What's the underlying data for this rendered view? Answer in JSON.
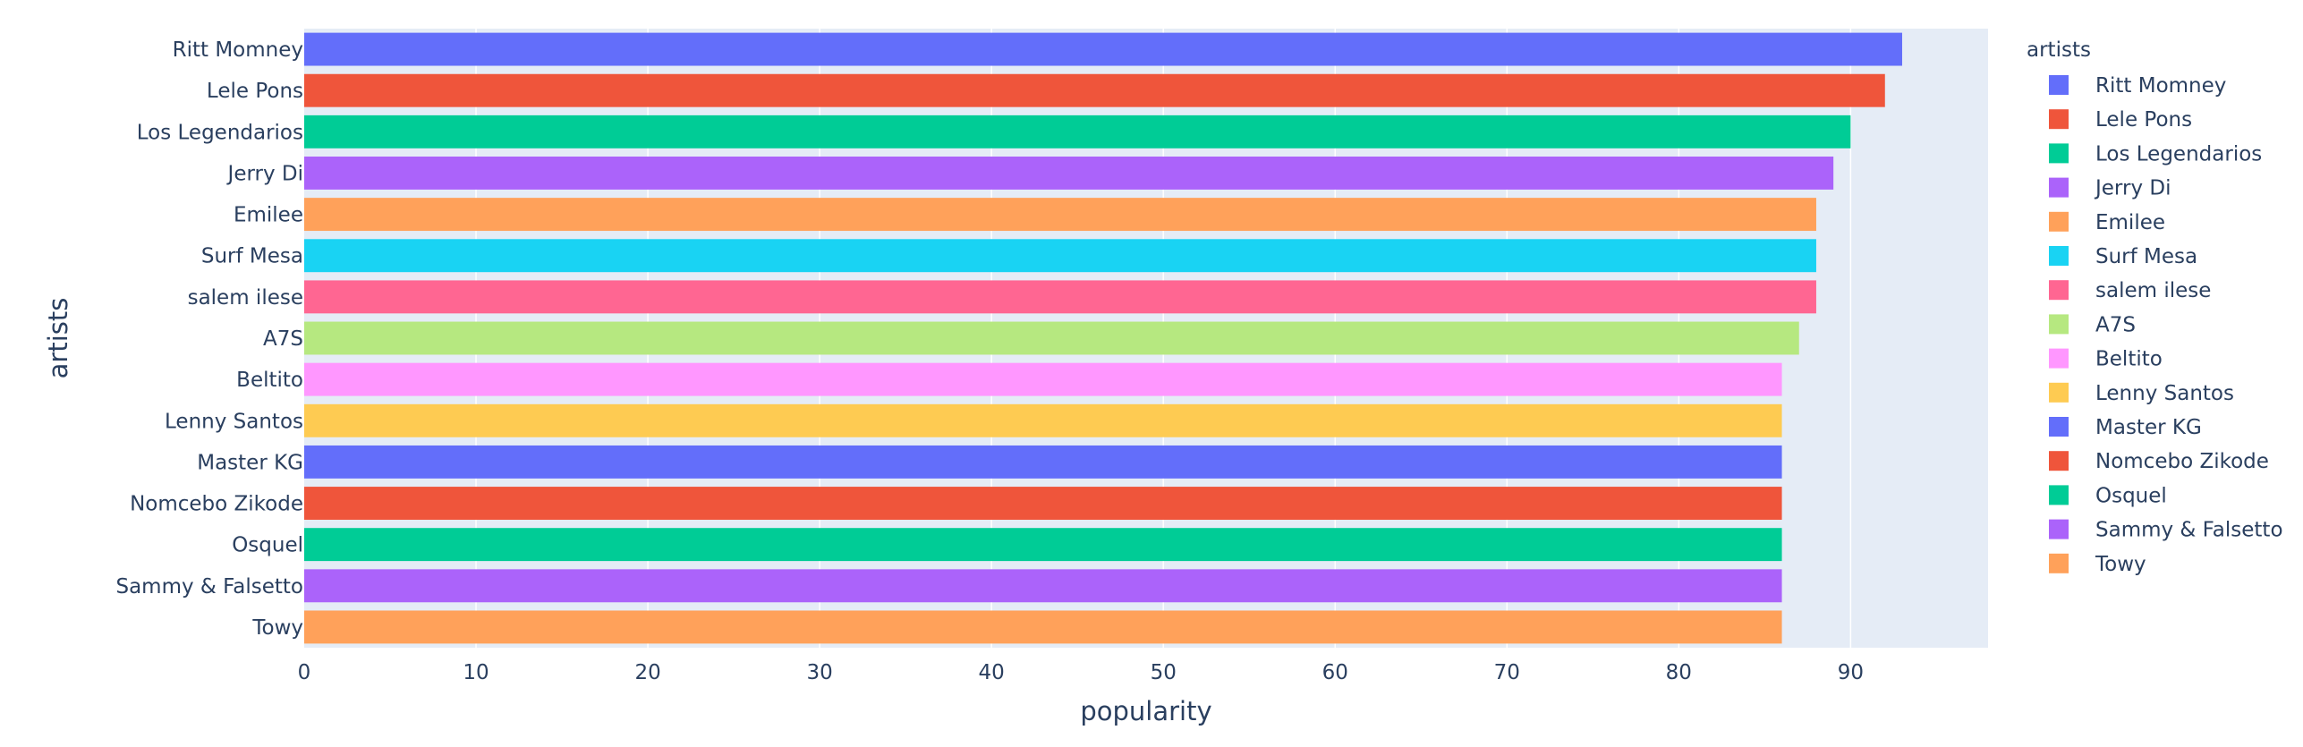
{
  "chart_data": {
    "type": "bar",
    "orientation": "horizontal",
    "xlabel": "popularity",
    "ylabel": "artists",
    "xlim": [
      0,
      98
    ],
    "xticks": [
      0,
      10,
      20,
      30,
      40,
      50,
      60,
      70,
      80,
      90
    ],
    "grid": true,
    "legend": {
      "title": "artists",
      "placement": "right"
    },
    "series": [
      {
        "name": "Ritt Momney",
        "value": 93,
        "color": "#636efa"
      },
      {
        "name": "Lele Pons",
        "value": 92,
        "color": "#EF553B"
      },
      {
        "name": "Los Legendarios",
        "value": 90,
        "color": "#00cc96"
      },
      {
        "name": "Jerry Di",
        "value": 89,
        "color": "#ab63fa"
      },
      {
        "name": "Emilee",
        "value": 88,
        "color": "#FFA15A"
      },
      {
        "name": "Surf Mesa",
        "value": 88,
        "color": "#19d3f3"
      },
      {
        "name": "salem ilese",
        "value": 88,
        "color": "#FF6692"
      },
      {
        "name": "A7S",
        "value": 87,
        "color": "#B6E880"
      },
      {
        "name": "Beltito",
        "value": 86,
        "color": "#FF97FF"
      },
      {
        "name": "Lenny Santos",
        "value": 86,
        "color": "#FECB52"
      },
      {
        "name": "Master KG",
        "value": 86,
        "color": "#636efa"
      },
      {
        "name": "Nomcebo Zikode",
        "value": 86,
        "color": "#EF553B"
      },
      {
        "name": "Osquel",
        "value": 86,
        "color": "#00cc96"
      },
      {
        "name": "Sammy & Falsetto",
        "value": 86,
        "color": "#ab63fa"
      },
      {
        "name": "Towy",
        "value": 86,
        "color": "#FFA15A"
      }
    ]
  }
}
